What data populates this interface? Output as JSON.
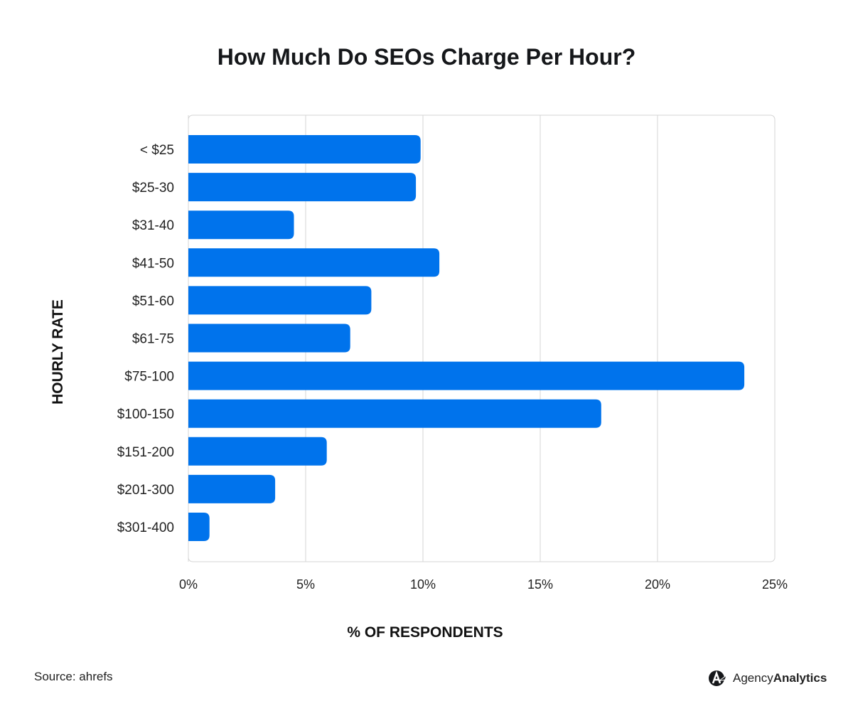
{
  "chart_data": {
    "type": "bar",
    "orientation": "horizontal",
    "title": "How Much Do SEOs Charge Per Hour?",
    "xlabel": "% OF RESPONDENTS",
    "ylabel": "HOURLY RATE",
    "categories": [
      "< $25",
      "$25-30",
      "$31-40",
      "$41-50",
      "$51-60",
      "$61-75",
      "$75-100",
      "$100-150",
      "$151-200",
      "$201-300",
      "$301-400"
    ],
    "values": [
      9.9,
      9.7,
      4.5,
      10.7,
      7.8,
      6.9,
      23.7,
      17.6,
      5.9,
      3.7,
      0.9
    ],
    "xlim": [
      0,
      25
    ],
    "xticks": [
      "0%",
      "5%",
      "10%",
      "15%",
      "20%",
      "25%"
    ],
    "grid": true,
    "bar_color": "#0073ec"
  },
  "footer": {
    "source": "Source: ahrefs",
    "brand_light": "Agency",
    "brand_bold": "Analytics"
  }
}
